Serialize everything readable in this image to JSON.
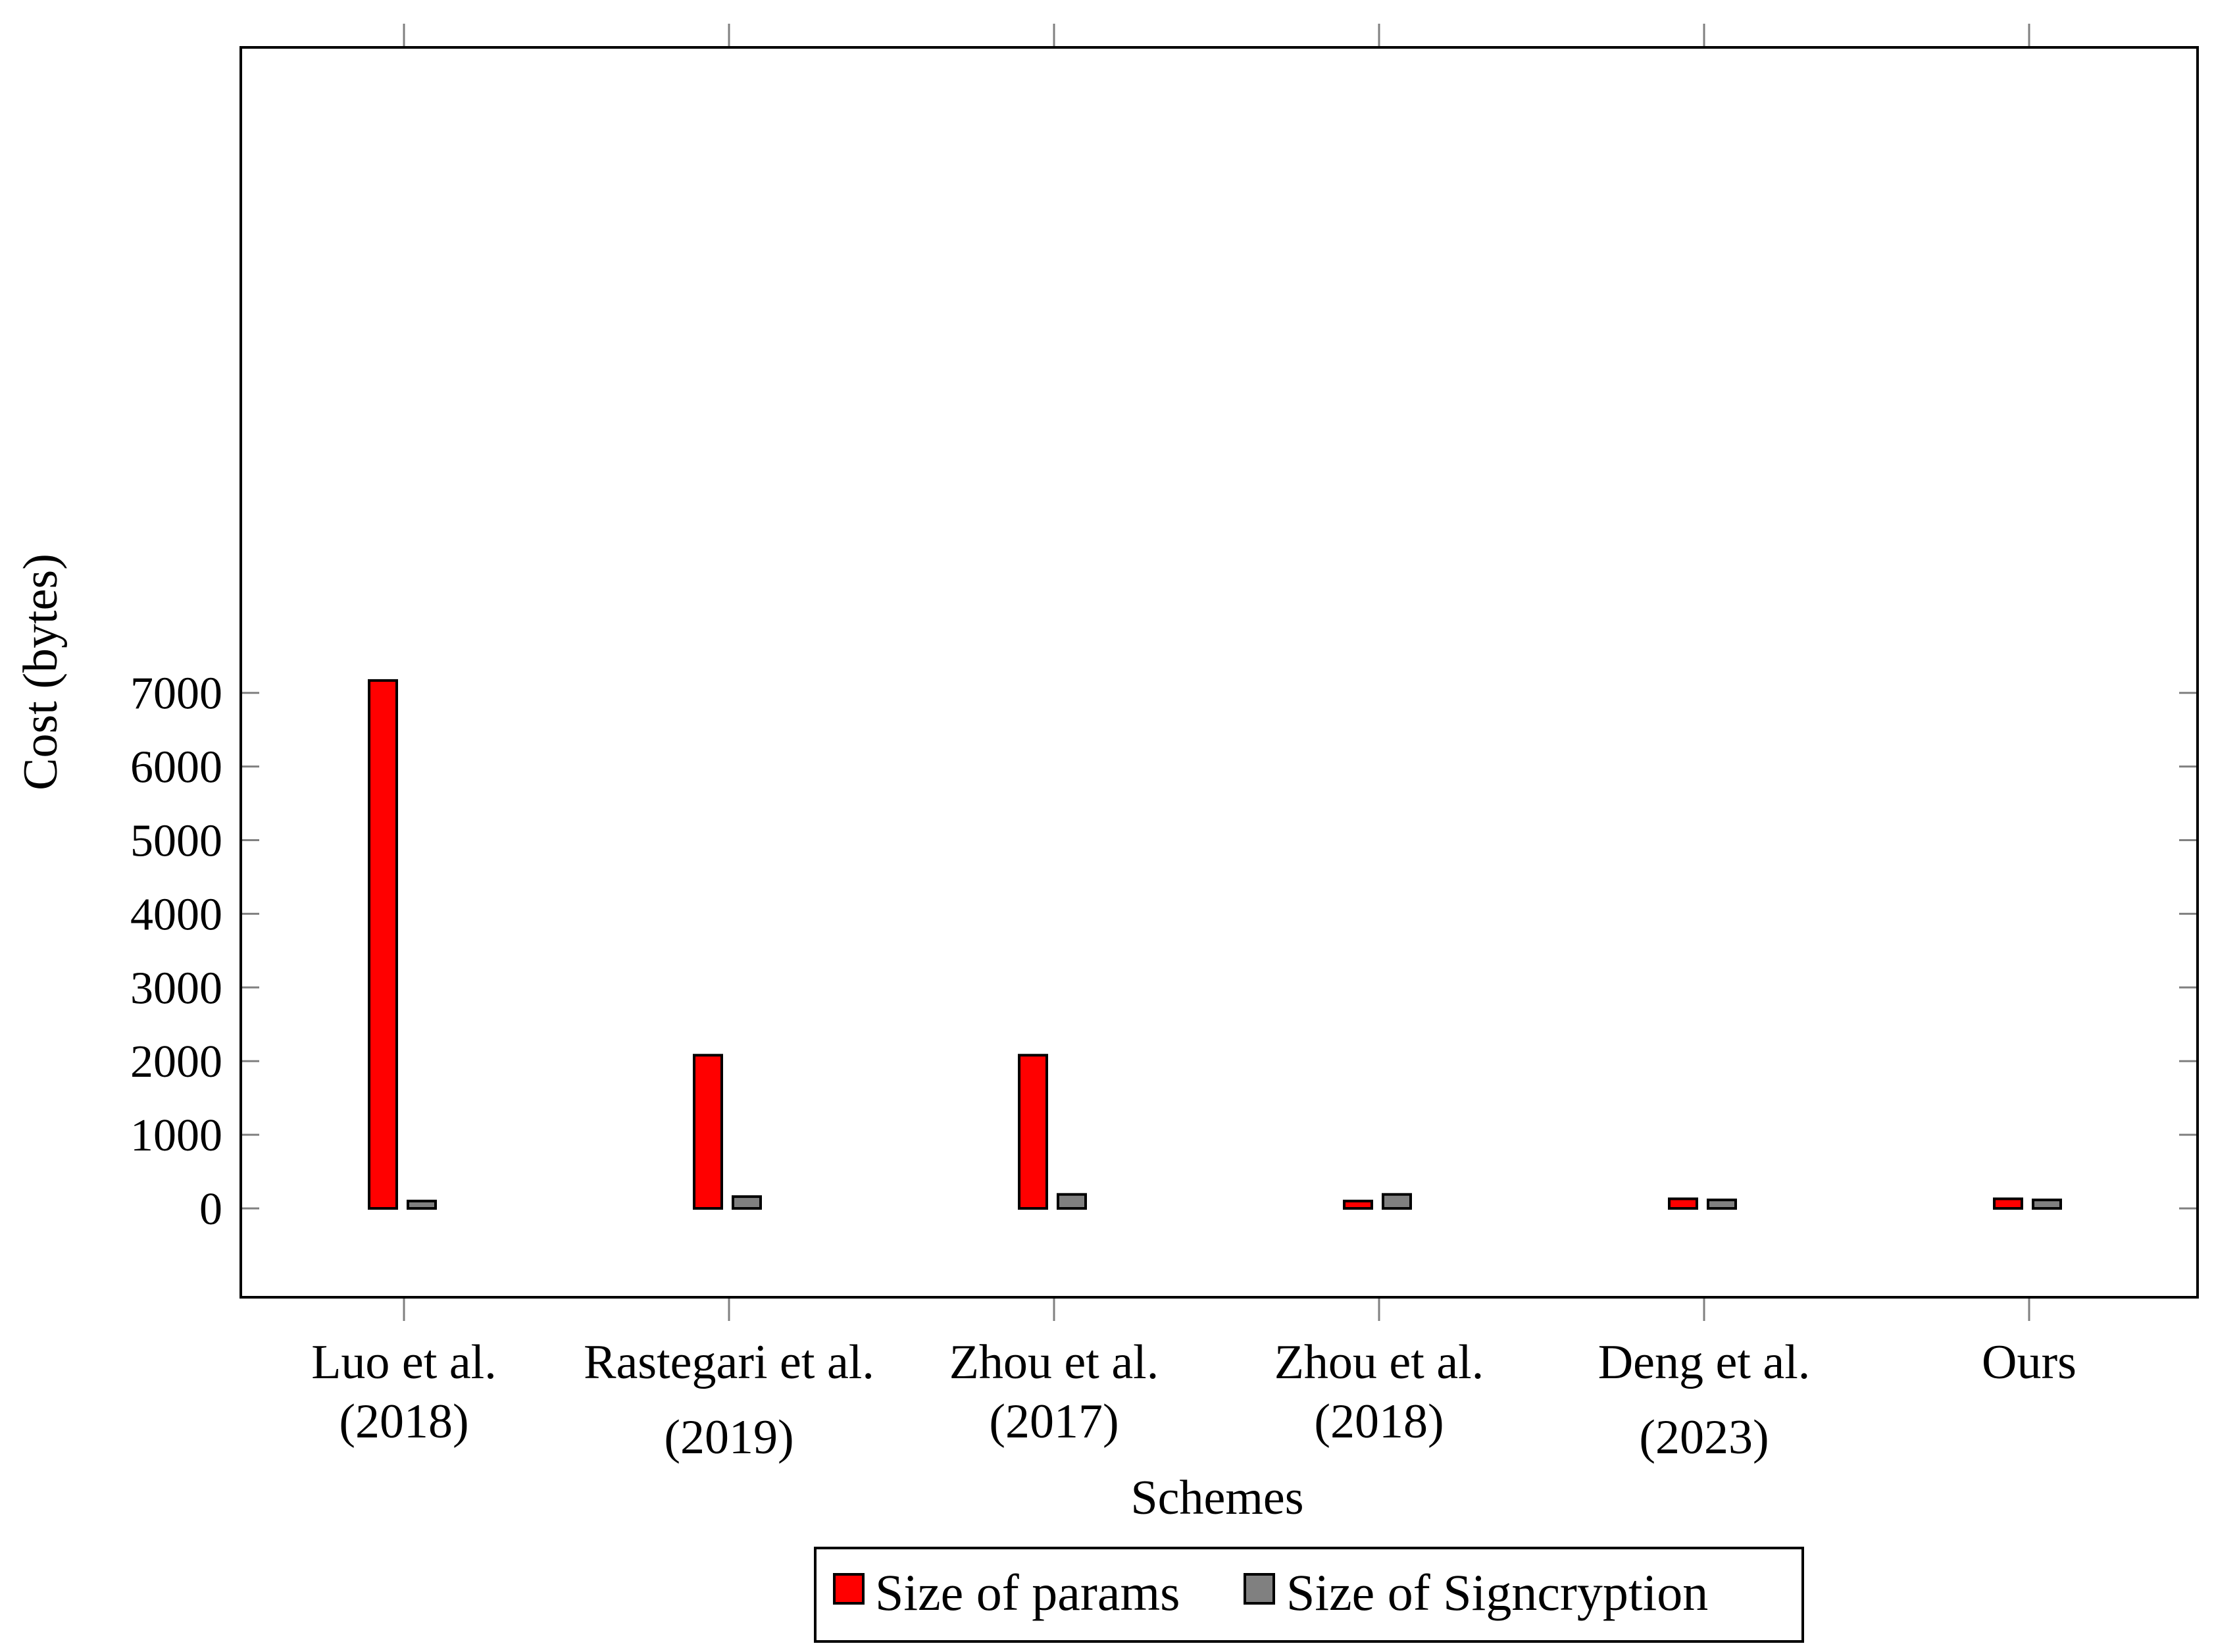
{
  "colors": {
    "params": "#ff0000",
    "signcryption": "#808080",
    "outline": "#000000",
    "background": "#ffffff"
  },
  "chart_data": {
    "type": "bar",
    "title": "",
    "xlabel": "Schemes",
    "ylabel": "Cost (bytes)",
    "ylim": [
      -600,
      7850
    ],
    "yticks": [
      0,
      1000,
      2000,
      3000,
      4000,
      5000,
      6000,
      7000
    ],
    "grid": false,
    "legend_position": "bottom-center",
    "categories": [
      [
        "Luo et al.",
        "(2018)"
      ],
      [
        "Rastegari et al.",
        "(2019)"
      ],
      [
        "Zhou et al.",
        "(2017)"
      ],
      [
        "Zhou et al.",
        "(2018)"
      ],
      [
        "Deng et al.",
        "(2023)"
      ],
      [
        "Ours"
      ]
    ],
    "series": [
      {
        "name": "Size of params",
        "color": "#ff0000",
        "values": [
          7168,
          2080,
          2080,
          100,
          130,
          130
        ]
      },
      {
        "name": "Size of Signcryption",
        "color": "#808080",
        "values": [
          100,
          160,
          190,
          190,
          115,
          115
        ]
      }
    ]
  }
}
